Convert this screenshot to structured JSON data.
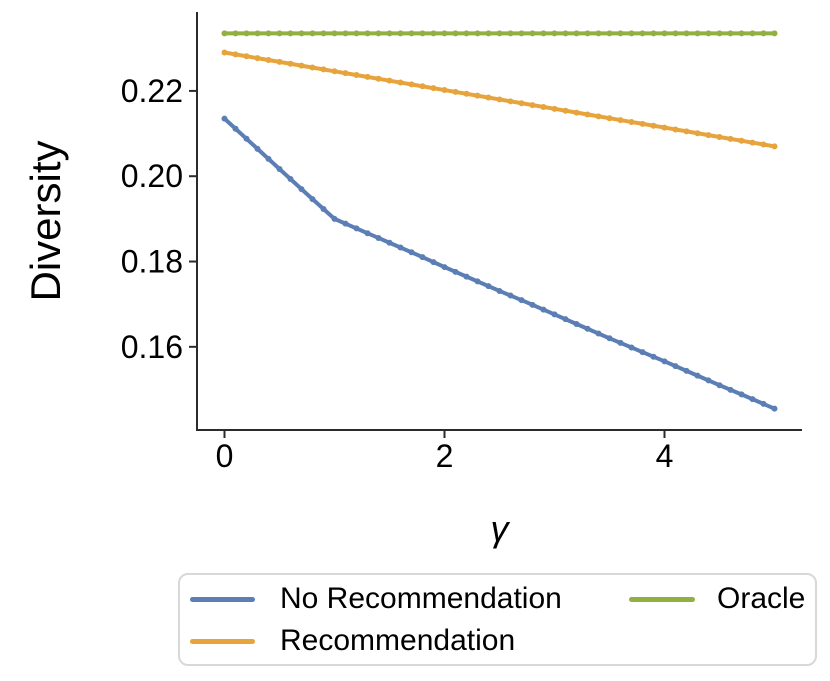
{
  "chart_data": {
    "type": "line",
    "title": "",
    "xlabel": "γ",
    "ylabel": "Diversity",
    "xlim": [
      -0.25,
      5.25
    ],
    "ylim": [
      0.1405,
      0.2385
    ],
    "xticks": [
      0,
      2,
      4
    ],
    "yticks": [
      0.16,
      0.18,
      0.2,
      0.22
    ],
    "grid": false,
    "legend_position": "below",
    "marker": "dot",
    "marker_step": 0.1,
    "x": [
      0,
      0.25,
      0.5,
      0.75,
      1,
      1.25,
      1.5,
      1.75,
      2,
      2.25,
      2.5,
      2.75,
      3,
      3.25,
      3.5,
      3.75,
      4,
      4.25,
      4.5,
      4.75,
      5
    ],
    "series": [
      {
        "name": "No Recommendation",
        "color": "#5b7fb5",
        "values": [
          0.2135,
          0.2076,
          0.2017,
          0.1958,
          0.19,
          0.1872,
          0.1844,
          0.1816,
          0.1787,
          0.1759,
          0.1731,
          0.1704,
          0.1676,
          0.1648,
          0.162,
          0.1593,
          0.1566,
          0.1538,
          0.151,
          0.1483,
          0.1455
        ]
      },
      {
        "name": "Recommendation",
        "color": "#e7a33c",
        "values": [
          0.229,
          0.2279,
          0.2268,
          0.2257,
          0.2246,
          0.2235,
          0.2224,
          0.2213,
          0.2202,
          0.2191,
          0.218,
          0.2169,
          0.2158,
          0.2147,
          0.2136,
          0.2125,
          0.2114,
          0.2103,
          0.2092,
          0.2081,
          0.207
        ]
      },
      {
        "name": "Oracle",
        "color": "#92b041",
        "values": [
          0.2335,
          0.2335,
          0.2335,
          0.2335,
          0.2335,
          0.2335,
          0.2335,
          0.2335,
          0.2335,
          0.2335,
          0.2335,
          0.2335,
          0.2335,
          0.2335,
          0.2335,
          0.2335,
          0.2335,
          0.2335,
          0.2335,
          0.2335,
          0.2335
        ]
      }
    ]
  },
  "colors": {
    "axis": "#2b2b2b",
    "tick_text": "#000000",
    "legend_border": "#d8d8d8",
    "background": "#ffffff"
  }
}
